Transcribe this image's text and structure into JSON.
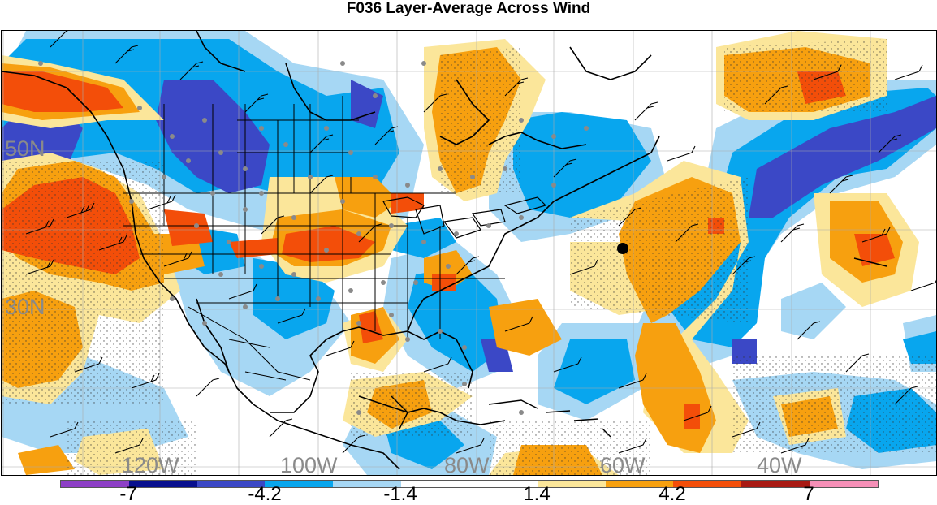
{
  "title": "F036 Layer-Average Across Wind",
  "lat_labels": [
    "50N",
    "30N"
  ],
  "lon_labels": [
    "120W",
    "100W",
    "80W",
    "60W",
    "40W"
  ],
  "colorbar": {
    "colors": [
      "#8d3fc6",
      "#08108e",
      "#3b48c6",
      "#08a6ee",
      "#a6d7f4",
      "#ffffff",
      "#ffffff",
      "#fbe69a",
      "#f7a00f",
      "#f34e09",
      "#a81a13",
      "#f58fb7"
    ],
    "tick_labels": [
      "-7",
      "-4.2",
      "-1.4",
      "1.4",
      "4.2",
      "7"
    ]
  },
  "colors": {
    "strong_negative": "#3b48c6",
    "negative": "#08a6ee",
    "weak_negative": "#a6d7f4",
    "weak_positive": "#fbe69a",
    "positive": "#f7a00f",
    "strong_positive": "#f34e09"
  },
  "features": {
    "coastlines": "black-lines",
    "state_borders": "black-lines",
    "wind_barbs": "black-barbs",
    "stations": "gray-dots",
    "marker": "black-dot"
  }
}
